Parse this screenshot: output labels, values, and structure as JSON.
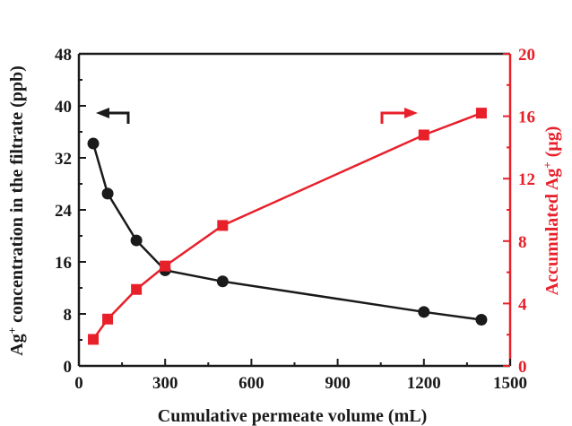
{
  "chart_data": {
    "type": "line",
    "title": "",
    "xlabel": "Cumulative permeate volume (mL)",
    "ylabel_left": {
      "pre": "Ag",
      "sup": "+",
      "post": " concentration in the filtrate (ppb)"
    },
    "ylabel_right": {
      "pre": "Accumulated Ag",
      "sup": "+",
      "post": " (μg)"
    },
    "xlim": [
      0,
      1500
    ],
    "ylim_left": [
      0,
      48
    ],
    "ylim_right": [
      0,
      20
    ],
    "x_ticks": [
      "0",
      "300",
      "600",
      "900",
      "1200",
      "1500"
    ],
    "y_left_ticks": [
      "0",
      "8",
      "16",
      "24",
      "32",
      "40",
      "48"
    ],
    "y_right_ticks": [
      "0",
      "4",
      "8",
      "12",
      "16",
      "20"
    ],
    "grid": false,
    "series": [
      {
        "axis": "left",
        "color": "#1a1a1a",
        "marker": "circle",
        "x": [
          50,
          100,
          200,
          300,
          500,
          1200,
          1400
        ],
        "y": [
          34.2,
          26.5,
          19.3,
          14.7,
          13.0,
          8.3,
          7.1
        ]
      },
      {
        "axis": "right",
        "color": "#e8202a",
        "marker": "square",
        "x": [
          50,
          100,
          200,
          300,
          500,
          1200,
          1400
        ],
        "y": [
          1.7,
          3.0,
          4.9,
          6.4,
          9.0,
          14.8,
          16.2
        ]
      }
    ],
    "indicators": [
      {
        "axis": "left",
        "color": "#1a1a1a",
        "direction": "left"
      },
      {
        "axis": "right",
        "color": "#e8202a",
        "direction": "right"
      }
    ]
  }
}
